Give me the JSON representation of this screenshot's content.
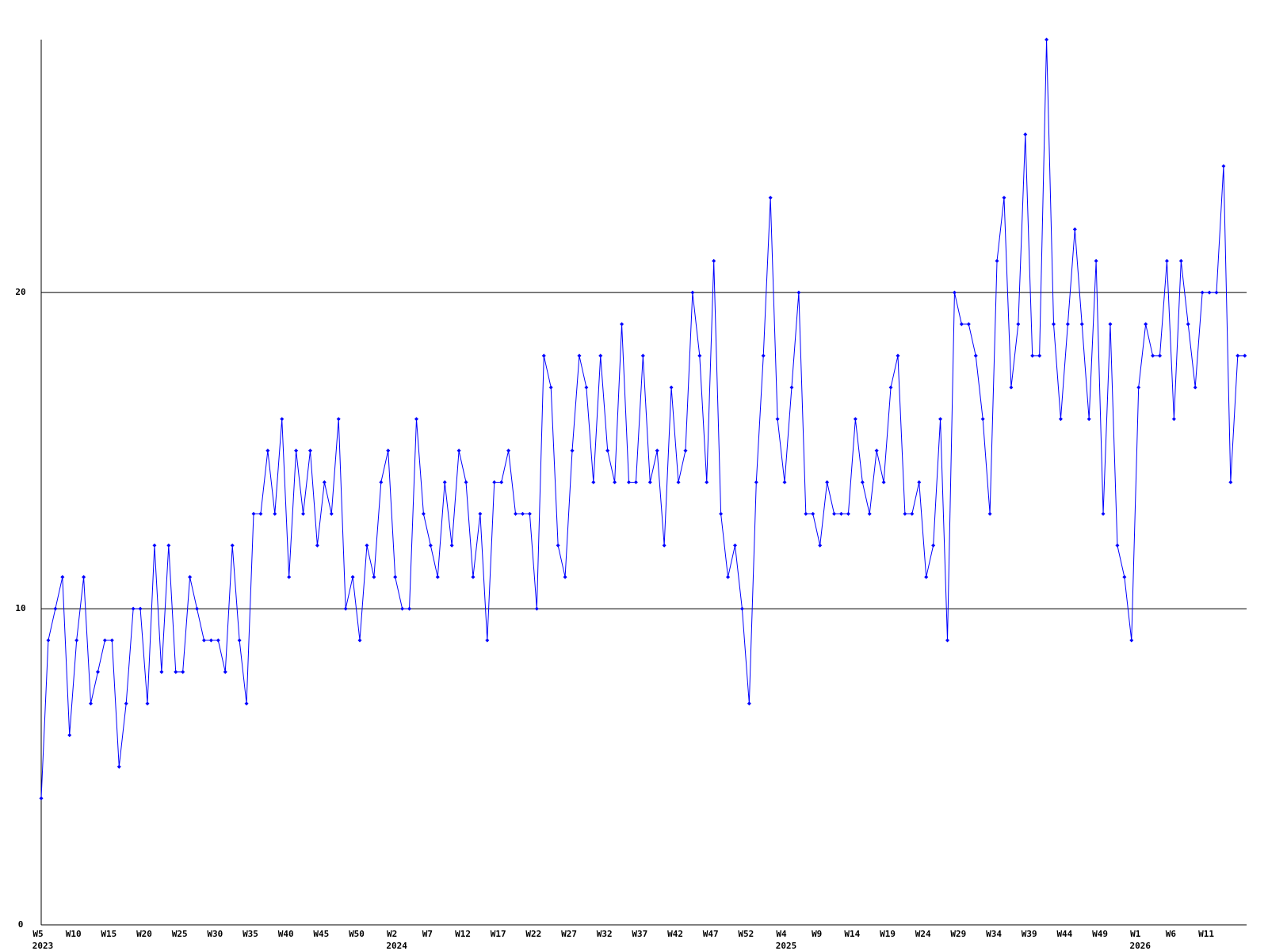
{
  "chart_data": {
    "type": "line",
    "categories": [
      "W5",
      null,
      null,
      null,
      null,
      "W10",
      null,
      null,
      null,
      null,
      "W15",
      null,
      null,
      null,
      null,
      "W20",
      null,
      null,
      null,
      null,
      "W25",
      null,
      null,
      null,
      null,
      "W30",
      null,
      null,
      null,
      null,
      "W35",
      null,
      null,
      null,
      null,
      "W40",
      null,
      null,
      null,
      null,
      "W45",
      null,
      null,
      null,
      null,
      "W50",
      null,
      null,
      null,
      null,
      "W2",
      null,
      null,
      null,
      null,
      "W7",
      null,
      null,
      null,
      null,
      "W12",
      null,
      null,
      null,
      null,
      "W17",
      null,
      null,
      null,
      null,
      "W22",
      null,
      null,
      null,
      null,
      "W27",
      null,
      null,
      null,
      null,
      "W32",
      null,
      null,
      null,
      null,
      "W37",
      null,
      null,
      null,
      null,
      "W42",
      null,
      null,
      null,
      null,
      "W47",
      null,
      null,
      null,
      null,
      "W52",
      null,
      null,
      null,
      null,
      "W4",
      null,
      null,
      null,
      null,
      "W9",
      null,
      null,
      null,
      null,
      "W14",
      null,
      null,
      null,
      null,
      "W19",
      null,
      null,
      null,
      null,
      "W24",
      null,
      null,
      null,
      null,
      "W29",
      null,
      null,
      null,
      null,
      "W34",
      null,
      null,
      null,
      null,
      "W39",
      null,
      null,
      null,
      null,
      "W44",
      null,
      null,
      null,
      null,
      "W49",
      null,
      null,
      null,
      null,
      "W1",
      null,
      null,
      null,
      null,
      "W6",
      null,
      null,
      null,
      null,
      "W11",
      null,
      null,
      null,
      null,
      null
    ],
    "category_years": [
      "2023",
      null,
      null,
      null,
      null,
      null,
      null,
      null,
      null,
      null,
      null,
      null,
      null,
      null,
      null,
      null,
      null,
      null,
      null,
      null,
      null,
      null,
      null,
      null,
      null,
      null,
      null,
      null,
      null,
      null,
      null,
      null,
      null,
      null,
      null,
      null,
      null,
      null,
      null,
      null,
      null,
      null,
      null,
      null,
      null,
      null,
      null,
      null,
      null,
      null,
      "2024",
      null,
      null,
      null,
      null,
      null,
      null,
      null,
      null,
      null,
      null,
      null,
      null,
      null,
      null,
      null,
      null,
      null,
      null,
      null,
      null,
      null,
      null,
      null,
      null,
      null,
      null,
      null,
      null,
      null,
      null,
      null,
      null,
      null,
      null,
      null,
      null,
      null,
      null,
      null,
      null,
      null,
      null,
      null,
      null,
      null,
      null,
      null,
      null,
      null,
      null,
      null,
      null,
      null,
      null,
      "2025",
      null,
      null,
      null,
      null,
      null,
      null,
      null,
      null,
      null,
      null,
      null,
      null,
      null,
      null,
      null,
      null,
      null,
      null,
      null,
      null,
      null,
      null,
      null,
      null,
      null,
      null,
      null,
      null,
      null,
      null,
      null,
      null,
      null,
      null,
      null,
      null,
      null,
      null,
      null,
      null,
      null,
      null,
      null,
      null,
      null,
      null,
      null,
      null,
      null,
      "2026",
      null,
      null,
      null,
      null,
      null,
      null,
      null,
      null,
      null,
      null,
      null,
      null,
      null,
      null,
      null
    ],
    "values": [
      4,
      9,
      10,
      11,
      6,
      9,
      11,
      7,
      8,
      9,
      9,
      5,
      7,
      10,
      10,
      7,
      12,
      8,
      12,
      8,
      8,
      11,
      10,
      9,
      9,
      9,
      8,
      12,
      9,
      7,
      13,
      13,
      15,
      13,
      16,
      11,
      15,
      13,
      15,
      12,
      14,
      13,
      16,
      10,
      11,
      9,
      12,
      11,
      14,
      15,
      11,
      10,
      10,
      16,
      13,
      12,
      11,
      14,
      12,
      15,
      14,
      11,
      13,
      9,
      14,
      14,
      15,
      13,
      13,
      13,
      10,
      18,
      17,
      12,
      11,
      15,
      18,
      17,
      14,
      18,
      15,
      14,
      19,
      14,
      14,
      18,
      14,
      15,
      12,
      17,
      14,
      15,
      20,
      18,
      14,
      21,
      13,
      11,
      12,
      10,
      7,
      14,
      18,
      23,
      16,
      14,
      17,
      20,
      13,
      13,
      12,
      14,
      13,
      13,
      13,
      16,
      14,
      13,
      15,
      14,
      17,
      18,
      13,
      13,
      14,
      11,
      12,
      16,
      9,
      20,
      19,
      19,
      18,
      16,
      13,
      21,
      23,
      17,
      19,
      25,
      18,
      18,
      28,
      19,
      16,
      19,
      22,
      19,
      16,
      21,
      13,
      19,
      12,
      11,
      9,
      17,
      19,
      18,
      18,
      21,
      16,
      21,
      19,
      17,
      20,
      20,
      20,
      24,
      14,
      18,
      18
    ],
    "color": "#0000ff",
    "ylim": [
      0,
      28
    ],
    "yticks": [
      0,
      10,
      20
    ],
    "grid": true
  }
}
